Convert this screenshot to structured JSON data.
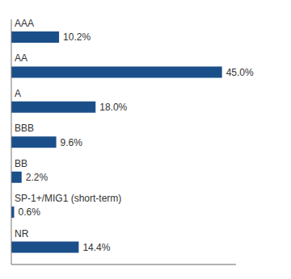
{
  "chart_data": {
    "type": "bar",
    "orientation": "horizontal",
    "categories": [
      "AAA",
      "AA",
      "A",
      "BBB",
      "BB",
      "SP-1+/MIG1 (short-term)",
      "NR"
    ],
    "values": [
      10.2,
      45.0,
      18.0,
      9.6,
      2.2,
      0.6,
      14.4
    ],
    "value_labels": [
      "10.2%",
      "45.0%",
      "18.0%",
      "9.6%",
      "2.2%",
      "0.6%",
      "14.4%"
    ],
    "color": "#1b4f8a",
    "xlim": [
      0,
      48
    ],
    "data_labels": true,
    "tick_labels": false,
    "grid": false
  }
}
